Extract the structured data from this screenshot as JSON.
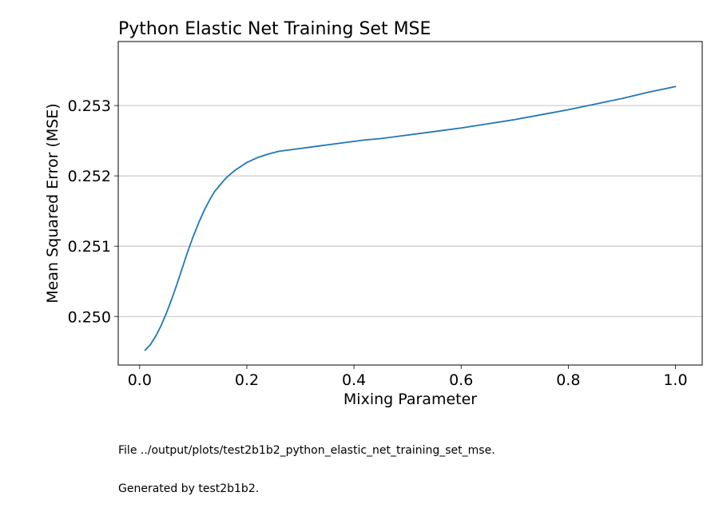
{
  "chart_data": {
    "type": "line",
    "title": "Python Elastic Net Training Set MSE",
    "xlabel": "Mixing Parameter",
    "ylabel": "Mean Squared Error (MSE)",
    "xlim": [
      -0.04,
      1.05
    ],
    "ylim": [
      0.24931,
      0.25391
    ],
    "xticks": [
      0.0,
      0.2,
      0.4,
      0.6,
      0.8,
      1.0
    ],
    "xtick_labels": [
      "0.0",
      "0.2",
      "0.4",
      "0.6",
      "0.8",
      "1.0"
    ],
    "yticks": [
      0.25,
      0.251,
      0.252,
      0.253
    ],
    "ytick_labels": [
      "0.250",
      "0.251",
      "0.252",
      "0.253"
    ],
    "grid": "horizontal",
    "line_color": "#1f77b4",
    "series": [
      {
        "x": [
          0.01,
          0.02,
          0.03,
          0.04,
          0.05,
          0.06,
          0.07,
          0.08,
          0.09,
          0.1,
          0.11,
          0.12,
          0.13,
          0.14,
          0.15,
          0.16,
          0.17,
          0.18,
          0.19,
          0.2,
          0.22,
          0.24,
          0.26,
          0.28,
          0.3,
          0.33,
          0.36,
          0.4,
          0.42,
          0.45,
          0.5,
          0.55,
          0.6,
          0.65,
          0.7,
          0.75,
          0.8,
          0.85,
          0.9,
          0.95,
          1.0
        ],
        "y": [
          0.24952,
          0.2496,
          0.24972,
          0.24987,
          0.25005,
          0.25025,
          0.25047,
          0.2507,
          0.25093,
          0.25114,
          0.25133,
          0.2515,
          0.25165,
          0.25178,
          0.25187,
          0.25196,
          0.25203,
          0.25209,
          0.25214,
          0.25219,
          0.25226,
          0.25231,
          0.25235,
          0.25237,
          0.25239,
          0.25242,
          0.25245,
          0.25249,
          0.25251,
          0.25253,
          0.25258,
          0.25263,
          0.25268,
          0.25274,
          0.2528,
          0.25287,
          0.25294,
          0.25302,
          0.2531,
          0.25319,
          0.25327
        ]
      }
    ]
  },
  "footer": {
    "line1": "File ../output/plots/test2b1b2_python_elastic_net_training_set_mse.",
    "line2": "Generated by test2b1b2."
  }
}
